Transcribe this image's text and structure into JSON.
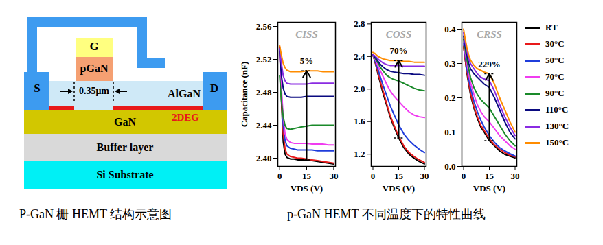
{
  "diagram": {
    "gate": "G",
    "gate_layer": "pGaN",
    "source": "S",
    "drain": "D",
    "dimension": "0.35μm",
    "barrier": "AlGaN",
    "channel_label": "2DEG",
    "channel": "GaN",
    "buffer": "Buffer layer",
    "substrate": "Si Substrate"
  },
  "captions": [
    "P-GaN 栅 HEMT 结构示意图",
    "p-GaN HEMT 不同温度下的特性曲线"
  ],
  "chart_data": [
    {
      "type": "line",
      "title": "CISS",
      "x_label": "VDS (V)",
      "y_label": "Capacitance (nF)",
      "x": [
        0,
        1,
        2,
        3,
        4,
        6,
        8,
        10,
        12,
        15,
        18,
        21,
        24,
        27,
        30
      ],
      "xlim": [
        -1,
        31
      ],
      "xticks": [
        0,
        15,
        30
      ],
      "ylim": [
        2.39,
        2.565
      ],
      "yticks": [
        {
          "value": 2.4,
          "label": "2.40"
        },
        2.44,
        {
          "value": 2.48,
          "label": "2.48"
        },
        2.52,
        2.56
      ],
      "annotations": [
        {
          "text": "5%",
          "x": 15
        }
      ],
      "series": [
        {
          "name": "RT",
          "color": "#000000",
          "values": [
            2.535,
            2.47,
            2.42,
            2.405,
            2.401,
            2.399,
            2.399,
            2.398,
            2.398,
            2.398,
            2.397,
            2.396,
            2.395,
            2.394,
            2.393
          ]
        },
        {
          "name": "30°C",
          "color": "#e8191a",
          "values": [
            2.536,
            2.475,
            2.43,
            2.412,
            2.405,
            2.402,
            2.401,
            2.4,
            2.4,
            2.399,
            2.398,
            2.397,
            2.396,
            2.395,
            2.394
          ]
        },
        {
          "name": "50°C",
          "color": "#1f3ddb",
          "values": [
            2.532,
            2.48,
            2.44,
            2.422,
            2.415,
            2.412,
            2.411,
            2.41,
            2.41,
            2.41,
            2.41,
            2.409,
            2.409,
            2.409,
            2.409
          ]
        },
        {
          "name": "70°C",
          "color": "#f03cf0",
          "values": [
            2.53,
            2.485,
            2.45,
            2.43,
            2.423,
            2.419,
            2.418,
            2.418,
            2.418,
            2.418,
            2.417,
            2.417,
            2.417,
            2.416,
            2.416
          ]
        },
        {
          "name": "90°C",
          "color": "#1a8a2a",
          "values": [
            2.5,
            2.47,
            2.45,
            2.44,
            2.436,
            2.435,
            2.436,
            2.437,
            2.438,
            2.439,
            2.44,
            2.44,
            2.44,
            2.44,
            2.44
          ]
        },
        {
          "name": "110°C",
          "color": "#0a0a80",
          "values": [
            2.53,
            2.5,
            2.485,
            2.478,
            2.475,
            2.474,
            2.474,
            2.474,
            2.474,
            2.475,
            2.475,
            2.475,
            2.475,
            2.475,
            2.475
          ]
        },
        {
          "name": "130°C",
          "color": "#8a2be2",
          "values": [
            2.533,
            2.515,
            2.5,
            2.494,
            2.491,
            2.49,
            2.49,
            2.49,
            2.49,
            2.49,
            2.491,
            2.491,
            2.491,
            2.491,
            2.491
          ]
        },
        {
          "name": "150°C",
          "color": "#ff8c00",
          "values": [
            2.537,
            2.525,
            2.515,
            2.51,
            2.507,
            2.505,
            2.505,
            2.505,
            2.505,
            2.506,
            2.506,
            2.506,
            2.505,
            2.505,
            2.505
          ]
        }
      ]
    },
    {
      "type": "line",
      "title": "COSS",
      "x_label": "VDS (V)",
      "x": [
        0,
        1,
        2,
        3,
        4,
        6,
        8,
        10,
        12,
        15,
        18,
        21,
        24,
        27,
        30
      ],
      "xlim": [
        -1,
        31
      ],
      "xticks": [
        0,
        15,
        30
      ],
      "ylim": [
        1.05,
        2.82
      ],
      "yticks": [
        1.2,
        1.6,
        {
          "value": 2,
          "label": "2.0"
        },
        2.4,
        2.8
      ],
      "annotations": [
        {
          "text": "70%",
          "x": 15
        }
      ],
      "series": [
        {
          "name": "RT",
          "color": "#000000",
          "values": [
            2.42,
            2.35,
            2.27,
            2.18,
            2.1,
            1.94,
            1.8,
            1.66,
            1.55,
            1.4,
            1.28,
            1.2,
            1.15,
            1.11,
            1.08
          ]
        },
        {
          "name": "30°C",
          "color": "#e8191a",
          "values": [
            2.42,
            2.35,
            2.28,
            2.2,
            2.12,
            1.97,
            1.82,
            1.68,
            1.57,
            1.42,
            1.3,
            1.22,
            1.17,
            1.13,
            1.1
          ]
        },
        {
          "name": "50°C",
          "color": "#1f3ddb",
          "values": [
            2.42,
            2.36,
            2.3,
            2.24,
            2.17,
            2.04,
            1.92,
            1.8,
            1.7,
            1.56,
            1.45,
            1.37,
            1.31,
            1.26,
            1.22
          ]
        },
        {
          "name": "70°C",
          "color": "#f03cf0",
          "values": [
            2.42,
            2.38,
            2.33,
            2.28,
            2.24,
            2.15,
            2.06,
            1.98,
            1.92,
            1.85,
            1.78,
            1.72,
            1.68,
            1.66,
            1.65
          ]
        },
        {
          "name": "90°C",
          "color": "#1a8a2a",
          "values": [
            2.42,
            2.39,
            2.35,
            2.32,
            2.28,
            2.22,
            2.17,
            2.14,
            2.12,
            2.1,
            2.07,
            2.04,
            2.01,
            1.99,
            1.98
          ]
        },
        {
          "name": "110°C",
          "color": "#0a0a80",
          "values": [
            2.42,
            2.4,
            2.37,
            2.34,
            2.31,
            2.27,
            2.24,
            2.22,
            2.21,
            2.2,
            2.19,
            2.19,
            2.18,
            2.18,
            2.17
          ]
        },
        {
          "name": "130°C",
          "color": "#8a2be2",
          "values": [
            2.42,
            2.41,
            2.39,
            2.37,
            2.35,
            2.32,
            2.3,
            2.29,
            2.29,
            2.29,
            2.28,
            2.28,
            2.28,
            2.28,
            2.28
          ]
        },
        {
          "name": "150°C",
          "color": "#ff8c00",
          "values": [
            2.45,
            2.44,
            2.42,
            2.4,
            2.39,
            2.37,
            2.36,
            2.35,
            2.35,
            2.35,
            2.34,
            2.34,
            2.33,
            2.33,
            2.33
          ]
        }
      ]
    },
    {
      "type": "line",
      "title": "CRSS",
      "x_label": "VDS (V)",
      "legend": "right",
      "x": [
        0,
        1,
        2,
        3,
        4,
        6,
        8,
        10,
        12,
        15,
        18,
        21,
        24,
        27,
        30
      ],
      "xlim": [
        -1,
        31
      ],
      "xticks": [
        0,
        15,
        30
      ],
      "ylim": [
        0,
        0.42
      ],
      "yticks": [
        {
          "value": 0,
          "label": "0.0"
        },
        0.1,
        0.2,
        0.3,
        0.4
      ],
      "annotations": [
        {
          "text": "229%",
          "x": 15
        }
      ],
      "series": [
        {
          "name": "RT",
          "color": "#000000",
          "values": [
            0.35,
            0.31,
            0.27,
            0.24,
            0.21,
            0.17,
            0.14,
            0.115,
            0.1,
            0.075,
            0.06,
            0.045,
            0.035,
            0.03,
            0.025
          ]
        },
        {
          "name": "30°C",
          "color": "#e8191a",
          "values": [
            0.35,
            0.31,
            0.275,
            0.245,
            0.215,
            0.175,
            0.145,
            0.12,
            0.105,
            0.08,
            0.063,
            0.05,
            0.04,
            0.033,
            0.028
          ]
        },
        {
          "name": "50°C",
          "color": "#1f3ddb",
          "values": [
            0.36,
            0.32,
            0.285,
            0.255,
            0.23,
            0.19,
            0.16,
            0.135,
            0.115,
            0.09,
            0.07,
            0.055,
            0.045,
            0.037,
            0.03
          ]
        },
        {
          "name": "70°C",
          "color": "#f03cf0",
          "values": [
            0.37,
            0.33,
            0.3,
            0.27,
            0.245,
            0.21,
            0.18,
            0.16,
            0.145,
            0.13,
            0.11,
            0.09,
            0.075,
            0.06,
            0.05
          ]
        },
        {
          "name": "90°C",
          "color": "#1a8a2a",
          "values": [
            0.37,
            0.34,
            0.31,
            0.285,
            0.26,
            0.23,
            0.21,
            0.195,
            0.185,
            0.17,
            0.145,
            0.12,
            0.095,
            0.075,
            0.06
          ]
        },
        {
          "name": "110°C",
          "color": "#0a0a80",
          "values": [
            0.38,
            0.35,
            0.325,
            0.3,
            0.285,
            0.27,
            0.26,
            0.25,
            0.24,
            0.23,
            0.2,
            0.165,
            0.13,
            0.1,
            0.08
          ]
        },
        {
          "name": "130°C",
          "color": "#8a2be2",
          "values": [
            0.39,
            0.36,
            0.335,
            0.315,
            0.3,
            0.285,
            0.27,
            0.26,
            0.255,
            0.25,
            0.22,
            0.18,
            0.145,
            0.115,
            0.09
          ]
        },
        {
          "name": "150°C",
          "color": "#ff8c00",
          "values": [
            0.4,
            0.37,
            0.345,
            0.325,
            0.31,
            0.295,
            0.285,
            0.28,
            0.275,
            0.27,
            0.24,
            0.2,
            0.165,
            0.13,
            0.1
          ]
        }
      ]
    }
  ]
}
